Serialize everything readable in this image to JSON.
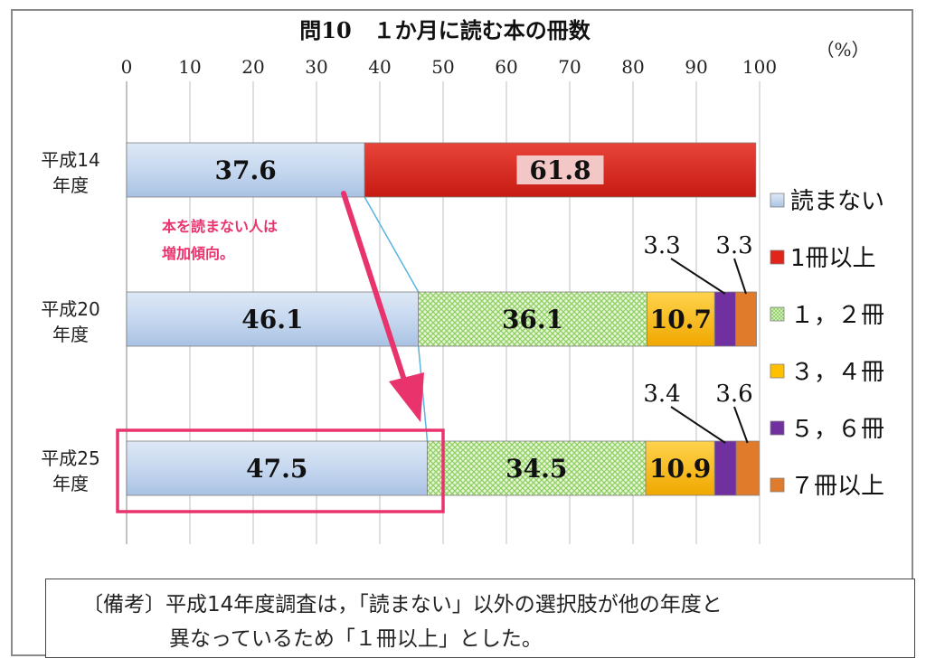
{
  "chart_data": {
    "type": "bar",
    "stacked": true,
    "orientation": "horizontal",
    "title": "問10　１か月に読む本の冊数",
    "unit_label": "（%）",
    "xlim": [
      0,
      100
    ],
    "x_ticks": [
      "0",
      "10",
      "20",
      "30",
      "40",
      "50",
      "60",
      "70",
      "80",
      "90",
      "100"
    ],
    "categories": [
      "平成14\n年度",
      "平成20\n年度",
      "平成25\n年度"
    ],
    "category_lines": [
      [
        "平成14",
        "年度"
      ],
      [
        "平成20",
        "年度"
      ],
      [
        "平成25",
        "年度"
      ]
    ],
    "series": [
      {
        "name": "読まない",
        "color": "#c6d9f1",
        "values": [
          37.6,
          46.1,
          47.5
        ],
        "labels": [
          "37.6",
          "46.1",
          "47.5"
        ]
      },
      {
        "name": "1冊以上",
        "color": "#e1251b",
        "values": [
          61.8,
          null,
          null
        ],
        "labels": [
          "61.8",
          "",
          ""
        ]
      },
      {
        "name": "１，２冊",
        "color": "#b7e39a",
        "values": [
          null,
          36.1,
          34.5
        ],
        "labels": [
          "",
          "36.1",
          "34.5"
        ]
      },
      {
        "name": "３，４冊",
        "color": "#ffc000",
        "values": [
          null,
          10.7,
          10.9
        ],
        "labels": [
          "",
          "10.7",
          "10.9"
        ]
      },
      {
        "name": "５，６冊",
        "color": "#7030a0",
        "values": [
          null,
          3.3,
          3.4
        ],
        "labels": [
          "",
          "3.3",
          "3.4"
        ]
      },
      {
        "name": "７冊以上",
        "color": "#e07b2c",
        "values": [
          null,
          3.3,
          3.6
        ],
        "labels": [
          "",
          "3.3",
          "3.6"
        ]
      }
    ],
    "legend_position": "right",
    "grid": true,
    "annotation": {
      "text_lines": [
        "本を読まない人は",
        "増加傾向。"
      ],
      "color": "#e8336d"
    }
  },
  "note": {
    "line1": "〔備考〕平成14年度調査は，「読まない」以外の選択肢が他の年度と",
    "line2": "異なっているため「１冊以上」とした。"
  }
}
